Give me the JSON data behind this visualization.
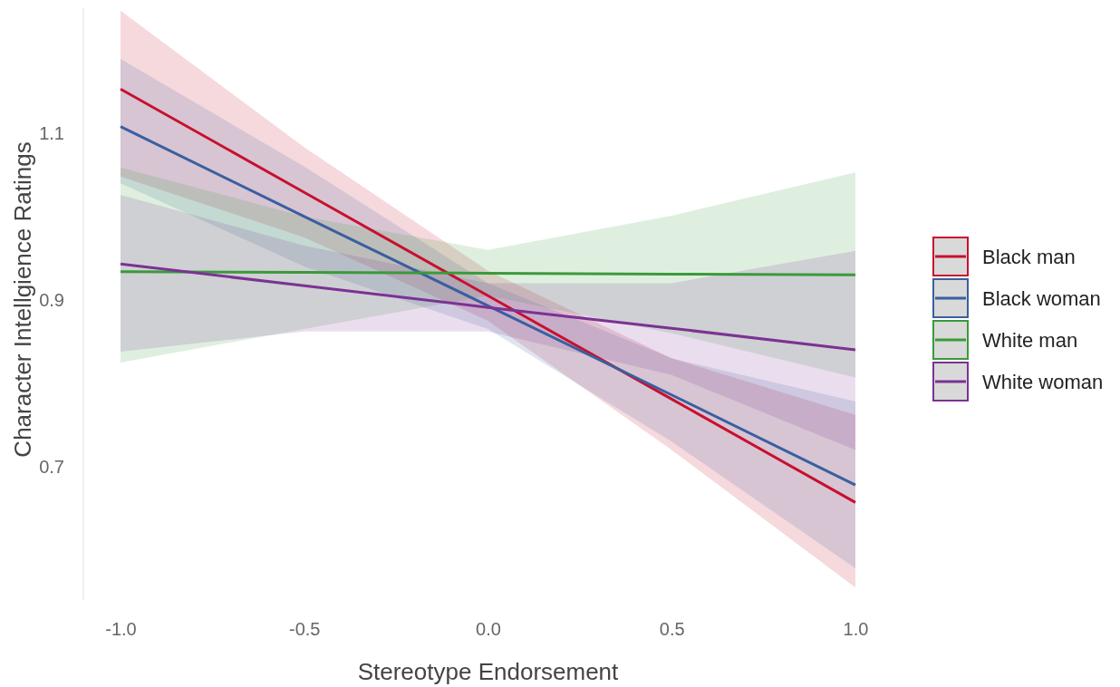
{
  "chart_data": {
    "type": "line",
    "xlabel": "Stereotype Endorsement",
    "ylabel": "Character Intellgience Ratings",
    "x": [
      -1,
      -0.5,
      0,
      0.5,
      1
    ],
    "xlim": [
      -1,
      1
    ],
    "ylim": [
      0.54,
      1.25
    ],
    "xticks": [
      {
        "value": -1,
        "label": "-1.0"
      },
      {
        "value": -0.5,
        "label": "-0.5"
      },
      {
        "value": 0,
        "label": "0.0"
      },
      {
        "value": 0.5,
        "label": "0.5"
      },
      {
        "value": 1,
        "label": "1.0"
      }
    ],
    "yticks": [
      0.7,
      0.9,
      1.1
    ],
    "grid": false,
    "legend": "right",
    "marker": "none",
    "line_style": "solid",
    "series": [
      {
        "name": "Black man",
        "color": "#c8102e",
        "values": [
          1.153,
          1.029,
          0.905,
          0.781,
          0.657
        ],
        "lower": [
          1.048,
          0.975,
          0.875,
          0.72,
          0.555
        ],
        "upper": [
          1.247,
          1.083,
          0.935,
          0.83,
          0.762
        ]
      },
      {
        "name": "Black woman",
        "color": "#3a5fa0",
        "values": [
          1.108,
          1.0,
          0.893,
          0.786,
          0.678
        ],
        "lower": [
          1.04,
          0.94,
          0.865,
          0.73,
          0.578
        ],
        "upper": [
          1.189,
          1.06,
          0.92,
          0.83,
          0.778
        ]
      },
      {
        "name": "White man",
        "color": "#3a9a3a",
        "values": [
          0.934,
          0.933,
          0.932,
          0.931,
          0.93
        ],
        "lower": [
          0.825,
          0.865,
          0.905,
          0.86,
          0.807
        ],
        "upper": [
          1.059,
          1.0,
          0.96,
          1.001,
          1.053
        ]
      },
      {
        "name": "White woman",
        "color": "#7b3294",
        "values": [
          0.943,
          0.917,
          0.891,
          0.866,
          0.84
        ],
        "lower": [
          0.838,
          0.862,
          0.862,
          0.81,
          0.72
        ],
        "upper": [
          1.026,
          0.965,
          0.92,
          0.92,
          0.959
        ]
      }
    ]
  }
}
